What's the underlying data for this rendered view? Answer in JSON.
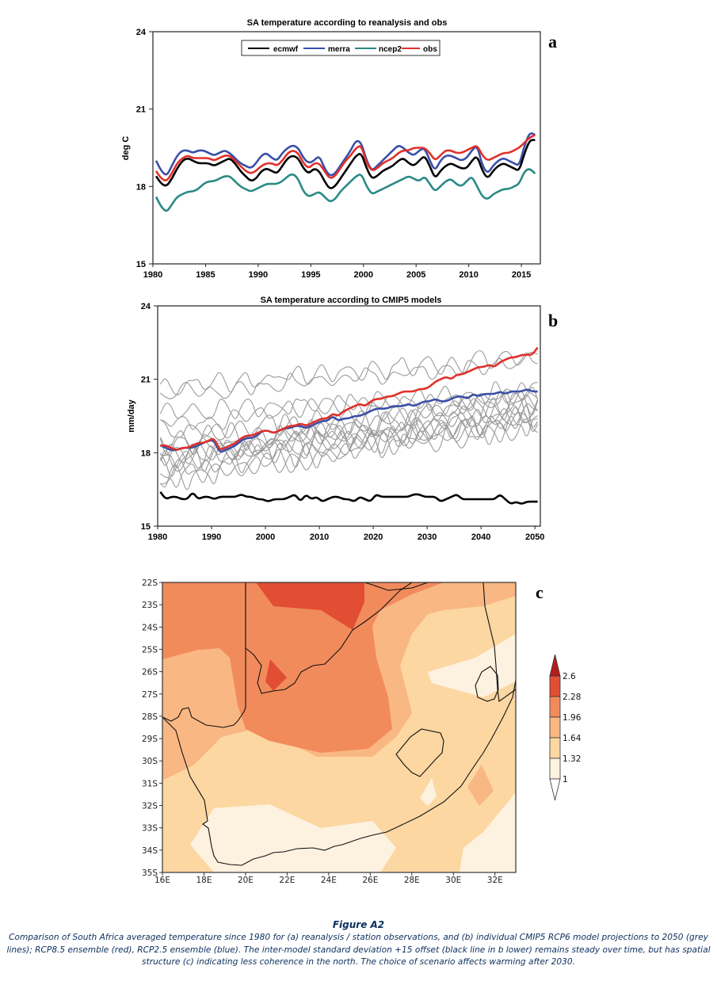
{
  "figure": {
    "title": "Figure A2",
    "caption": "Comparison of South Africa averaged temperature since 1980 for (a) reanalysis / station observations, and (b) individual CMIP5 RCP6 model projections to 2050 (grey lines); RCP8.5 ensemble (red), RCP2.5 ensemble (blue). The inter-model standard deviation +15 offset (black line in b lower) remains steady over time, but has spatial structure (c) indicating less coherence in the north. The choice of scenario affects warming after 2030."
  },
  "chart_data": [
    {
      "panel": "a",
      "type": "line",
      "title": "SA temperature according to reanalysis and obs",
      "xlabel": "",
      "ylabel": "deg C",
      "xlim": [
        1980,
        2016.8
      ],
      "ylim": [
        15,
        24
      ],
      "xticks": [
        1980,
        1985,
        1990,
        1995,
        2000,
        2005,
        2010,
        2015
      ],
      "yticks": [
        15,
        18,
        21,
        24
      ],
      "grid": false,
      "legend_position": "top-center",
      "x": [
        1980.3,
        1980.8,
        1981.3,
        1981.8,
        1982.3,
        1982.8,
        1983.3,
        1983.8,
        1984.3,
        1984.8,
        1985.3,
        1985.8,
        1986.3,
        1986.8,
        1987.3,
        1987.8,
        1988.3,
        1988.8,
        1989.3,
        1989.8,
        1990.3,
        1990.8,
        1991.3,
        1991.8,
        1992.3,
        1992.8,
        1993.3,
        1993.8,
        1994.3,
        1994.8,
        1995.3,
        1995.8,
        1996.3,
        1996.8,
        1997.3,
        1997.8,
        1998.3,
        1998.8,
        1999.3,
        1999.8,
        2000.3,
        2000.8,
        2001.3,
        2001.8,
        2002.3,
        2002.8,
        2003.3,
        2003.8,
        2004.3,
        2004.8,
        2005.3,
        2005.8,
        2006.3,
        2006.8,
        2007.3,
        2007.8,
        2008.3,
        2008.8,
        2009.3,
        2009.8,
        2010.3,
        2010.8,
        2011.3,
        2011.8,
        2012.3,
        2012.8,
        2013.3,
        2013.8,
        2014.3,
        2014.8,
        2015.3,
        2015.8,
        2016.3
      ],
      "series": [
        {
          "name": "ecmwf",
          "color": "#000000",
          "values": [
            18.4,
            18.1,
            18.0,
            18.3,
            18.7,
            19.0,
            19.1,
            19.0,
            18.9,
            18.9,
            18.9,
            18.8,
            18.9,
            19.0,
            19.1,
            18.9,
            18.6,
            18.4,
            18.2,
            18.3,
            18.6,
            18.7,
            18.6,
            18.5,
            18.8,
            19.1,
            19.2,
            19.1,
            18.7,
            18.5,
            18.7,
            18.6,
            18.2,
            17.9,
            18.0,
            18.3,
            18.6,
            18.9,
            19.2,
            19.3,
            18.7,
            18.3,
            18.4,
            18.6,
            18.7,
            18.8,
            19.0,
            19.1,
            18.9,
            18.8,
            19.0,
            19.2,
            18.8,
            18.3,
            18.6,
            18.8,
            18.9,
            18.8,
            18.7,
            18.7,
            19.0,
            19.2,
            18.6,
            18.3,
            18.6,
            18.8,
            18.9,
            18.8,
            18.7,
            18.6,
            19.3,
            19.8,
            19.8
          ]
        },
        {
          "name": "merra",
          "color": "#3a4fa8",
          "values": [
            19.0,
            18.6,
            18.4,
            18.8,
            19.2,
            19.4,
            19.4,
            19.3,
            19.4,
            19.4,
            19.3,
            19.2,
            19.3,
            19.4,
            19.3,
            19.1,
            18.9,
            18.8,
            18.7,
            18.9,
            19.2,
            19.3,
            19.1,
            19.0,
            19.3,
            19.5,
            19.6,
            19.5,
            19.1,
            18.9,
            19.0,
            19.2,
            18.7,
            18.4,
            18.5,
            18.8,
            19.1,
            19.4,
            19.8,
            19.7,
            19.0,
            18.6,
            18.8,
            19.0,
            19.2,
            19.4,
            19.6,
            19.5,
            19.3,
            19.2,
            19.4,
            19.5,
            19.0,
            18.6,
            19.0,
            19.2,
            19.2,
            19.1,
            19.0,
            19.1,
            19.4,
            19.6,
            18.8,
            18.5,
            18.8,
            19.0,
            19.1,
            19.0,
            18.9,
            18.8,
            19.6,
            20.1,
            20.0
          ]
        },
        {
          "name": "ncep2",
          "color": "#2a8a86",
          "values": [
            17.6,
            17.2,
            17.0,
            17.3,
            17.6,
            17.7,
            17.8,
            17.8,
            17.9,
            18.1,
            18.2,
            18.2,
            18.3,
            18.4,
            18.4,
            18.2,
            18.0,
            17.9,
            17.8,
            17.9,
            18.0,
            18.1,
            18.1,
            18.1,
            18.2,
            18.4,
            18.5,
            18.3,
            17.8,
            17.6,
            17.7,
            17.8,
            17.6,
            17.4,
            17.5,
            17.8,
            18.0,
            18.2,
            18.4,
            18.5,
            18.0,
            17.7,
            17.8,
            17.9,
            18.0,
            18.1,
            18.2,
            18.3,
            18.4,
            18.3,
            18.2,
            18.4,
            18.1,
            17.8,
            18.0,
            18.2,
            18.3,
            18.1,
            18.0,
            18.2,
            18.4,
            18.0,
            17.6,
            17.5,
            17.7,
            17.8,
            17.9,
            17.9,
            18.0,
            18.1,
            18.6,
            18.7,
            18.5
          ]
        },
        {
          "name": "obs",
          "color": "#e0302a",
          "values": [
            18.6,
            18.3,
            18.2,
            18.5,
            18.9,
            19.1,
            19.2,
            19.1,
            19.1,
            19.1,
            19.1,
            19.0,
            19.1,
            19.2,
            19.2,
            19.0,
            18.8,
            18.6,
            18.5,
            18.6,
            18.8,
            18.9,
            18.9,
            18.8,
            19.0,
            19.3,
            19.4,
            19.3,
            18.9,
            18.7,
            18.9,
            18.9,
            18.6,
            18.3,
            18.4,
            18.7,
            19.0,
            19.2,
            19.5,
            19.6,
            18.9,
            18.6,
            18.7,
            18.9,
            19.0,
            19.1,
            19.3,
            19.4,
            19.4,
            19.5,
            19.5,
            19.5,
            19.3,
            19.0,
            19.2,
            19.4,
            19.4,
            19.3,
            19.3,
            19.4,
            19.5,
            19.6,
            19.2,
            19.0,
            19.1,
            19.2,
            19.3,
            19.3,
            19.4,
            19.5,
            19.7,
            19.9,
            20.0
          ]
        }
      ]
    },
    {
      "panel": "b",
      "type": "line",
      "title": "SA temperature according to CMIP5 models",
      "xlabel": "",
      "ylabel": "mm/day",
      "xlim": [
        1980,
        2051
      ],
      "ylim": [
        15,
        24
      ],
      "xticks": [
        1980,
        1990,
        2000,
        2010,
        2020,
        2030,
        2040,
        2050
      ],
      "yticks": [
        15,
        18,
        21,
        24
      ],
      "grid": false,
      "x_start": 1980.5,
      "x_step": 1,
      "ensembles": [
        {
          "name": "RCP8.5 ensemble",
          "color": "#e0302a",
          "values": [
            18.3,
            18.3,
            18.2,
            18.1,
            18.2,
            18.2,
            18.3,
            18.4,
            18.4,
            18.5,
            18.6,
            18.1,
            18.2,
            18.3,
            18.4,
            18.6,
            18.7,
            18.7,
            18.8,
            18.9,
            18.9,
            18.8,
            18.9,
            19.0,
            19.1,
            19.1,
            19.2,
            19.1,
            19.2,
            19.3,
            19.4,
            19.4,
            19.6,
            19.5,
            19.7,
            19.8,
            19.9,
            20.0,
            19.9,
            20.1,
            20.2,
            20.2,
            20.3,
            20.3,
            20.4,
            20.5,
            20.5,
            20.5,
            20.6,
            20.6,
            20.7,
            20.9,
            21.0,
            21.1,
            21.0,
            21.2,
            21.2,
            21.3,
            21.4,
            21.5,
            21.5,
            21.6,
            21.5,
            21.7,
            21.8,
            21.9,
            21.9,
            22.0,
            22.0,
            22.0,
            22.3
          ]
        },
        {
          "name": "RCP2.5 ensemble",
          "color": "#3a4fa8",
          "values": [
            18.3,
            18.2,
            18.1,
            18.1,
            18.2,
            18.2,
            18.2,
            18.3,
            18.4,
            18.5,
            18.5,
            18.0,
            18.1,
            18.2,
            18.3,
            18.5,
            18.6,
            18.6,
            18.7,
            18.9,
            18.9,
            18.8,
            18.9,
            19.0,
            19.0,
            19.1,
            19.1,
            19.0,
            19.1,
            19.2,
            19.3,
            19.3,
            19.5,
            19.3,
            19.4,
            19.4,
            19.5,
            19.5,
            19.6,
            19.7,
            19.8,
            19.8,
            19.8,
            19.9,
            19.9,
            19.9,
            20.0,
            19.9,
            20.0,
            20.1,
            20.1,
            20.2,
            20.1,
            20.1,
            20.2,
            20.3,
            20.3,
            20.2,
            20.4,
            20.3,
            20.4,
            20.4,
            20.4,
            20.5,
            20.4,
            20.5,
            20.5,
            20.5,
            20.6,
            20.5,
            20.5
          ]
        }
      ],
      "models_grey": [
        {
          "name": "model-1",
          "base": 20.7,
          "trend": 0.018,
          "amp": 0.45,
          "phase": 0.3
        },
        {
          "name": "model-2",
          "base": 20.3,
          "trend": 0.022,
          "amp": 0.4,
          "phase": 1.7
        },
        {
          "name": "model-3",
          "base": 19.2,
          "trend": 0.02,
          "amp": 0.45,
          "phase": 2.4
        },
        {
          "name": "model-4",
          "base": 18.8,
          "trend": 0.018,
          "amp": 0.5,
          "phase": 0.9
        },
        {
          "name": "model-5",
          "base": 18.4,
          "trend": 0.024,
          "amp": 0.55,
          "phase": 3.1
        },
        {
          "name": "model-6",
          "base": 18.0,
          "trend": 0.028,
          "amp": 0.55,
          "phase": 4.0
        },
        {
          "name": "model-7",
          "base": 17.8,
          "trend": 0.026,
          "amp": 0.5,
          "phase": 5.1
        },
        {
          "name": "model-8",
          "base": 17.6,
          "trend": 0.03,
          "amp": 0.55,
          "phase": 0.5
        },
        {
          "name": "model-9",
          "base": 17.4,
          "trend": 0.03,
          "amp": 0.6,
          "phase": 2.0
        },
        {
          "name": "model-10",
          "base": 17.2,
          "trend": 0.032,
          "amp": 0.55,
          "phase": 3.6
        },
        {
          "name": "model-11",
          "base": 17.0,
          "trend": 0.03,
          "amp": 0.5,
          "phase": 1.2
        },
        {
          "name": "model-12",
          "base": 16.9,
          "trend": 0.034,
          "amp": 0.55,
          "phase": 4.6
        },
        {
          "name": "model-13",
          "base": 18.2,
          "trend": 0.016,
          "amp": 0.45,
          "phase": 2.8
        },
        {
          "name": "model-14",
          "base": 19.6,
          "trend": 0.012,
          "amp": 0.45,
          "phase": 5.6
        },
        {
          "name": "model-15",
          "base": 17.6,
          "trend": 0.04,
          "amp": 0.5,
          "phase": 0.1
        }
      ],
      "spread": {
        "name": "inter-model std dev +15",
        "color": "#000000",
        "values": [
          16.4,
          16.1,
          16.2,
          16.2,
          16.1,
          16.1,
          16.4,
          16.1,
          16.2,
          16.2,
          16.1,
          16.2,
          16.2,
          16.2,
          16.2,
          16.3,
          16.2,
          16.2,
          16.1,
          16.1,
          16.0,
          16.1,
          16.1,
          16.1,
          16.2,
          16.3,
          16.0,
          16.3,
          16.1,
          16.2,
          16.0,
          16.1,
          16.2,
          16.2,
          16.1,
          16.1,
          16.0,
          16.2,
          16.1,
          16.0,
          16.3,
          16.2,
          16.2,
          16.2,
          16.2,
          16.2,
          16.2,
          16.3,
          16.3,
          16.2,
          16.2,
          16.2,
          16.0,
          16.1,
          16.2,
          16.3,
          16.1,
          16.1,
          16.1,
          16.1,
          16.1,
          16.1,
          16.1,
          16.3,
          16.1,
          15.9,
          16.0,
          15.9,
          16.0,
          16.0,
          16.0
        ]
      }
    },
    {
      "panel": "c",
      "type": "heatmap",
      "title": "",
      "xlabel": "",
      "ylabel": "",
      "xlim": [
        16,
        33
      ],
      "ylim": [
        -35,
        -22
      ],
      "xticks": [
        "16E",
        "18E",
        "20E",
        "22E",
        "24E",
        "26E",
        "28E",
        "30E",
        "32E"
      ],
      "yticks": [
        "22S",
        "23S",
        "24S",
        "25S",
        "26S",
        "27S",
        "28S",
        "29S",
        "30S",
        "31S",
        "32S",
        "33S",
        "34S",
        "35S"
      ],
      "colorbar": {
        "levels": [
          1,
          1.32,
          1.64,
          1.96,
          2.28,
          2.6
        ],
        "labels": [
          "1",
          "1.32",
          "1.64",
          "1.96",
          "2.28",
          "2.6"
        ],
        "colors": [
          "#fdf2e0",
          "#fcd7a2",
          "#f9b783",
          "#f28b5c",
          "#e14e33",
          "#b71c1c"
        ],
        "extend": "both"
      }
    }
  ],
  "panels": {
    "a": "a",
    "b": "b",
    "c": "c"
  }
}
